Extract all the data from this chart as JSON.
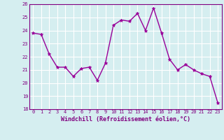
{
  "x": [
    0,
    1,
    2,
    3,
    4,
    5,
    6,
    7,
    8,
    9,
    10,
    11,
    12,
    13,
    14,
    15,
    16,
    17,
    18,
    19,
    20,
    21,
    22,
    23
  ],
  "y": [
    23.8,
    23.7,
    22.2,
    21.2,
    21.2,
    20.5,
    21.1,
    21.2,
    20.2,
    21.5,
    24.4,
    24.8,
    24.7,
    25.3,
    24.0,
    25.7,
    23.8,
    21.8,
    21.0,
    21.4,
    21.0,
    20.7,
    20.5,
    18.5
  ],
  "line_color": "#990099",
  "marker": "*",
  "marker_size": 3.5,
  "bg_color": "#d5eef0",
  "grid_color": "#aacccc",
  "xlabel": "Windchill (Refroidissement éolien,°C)",
  "ylim": [
    18,
    26
  ],
  "xlim_min": -0.5,
  "xlim_max": 23.5,
  "yticks": [
    18,
    19,
    20,
    21,
    22,
    23,
    24,
    25,
    26
  ],
  "xticks": [
    0,
    1,
    2,
    3,
    4,
    5,
    6,
    7,
    8,
    9,
    10,
    11,
    12,
    13,
    14,
    15,
    16,
    17,
    18,
    19,
    20,
    21,
    22,
    23
  ],
  "tick_fontsize": 5.0,
  "xlabel_fontsize": 6.0,
  "linewidth": 1.0,
  "spine_color": "#800080"
}
